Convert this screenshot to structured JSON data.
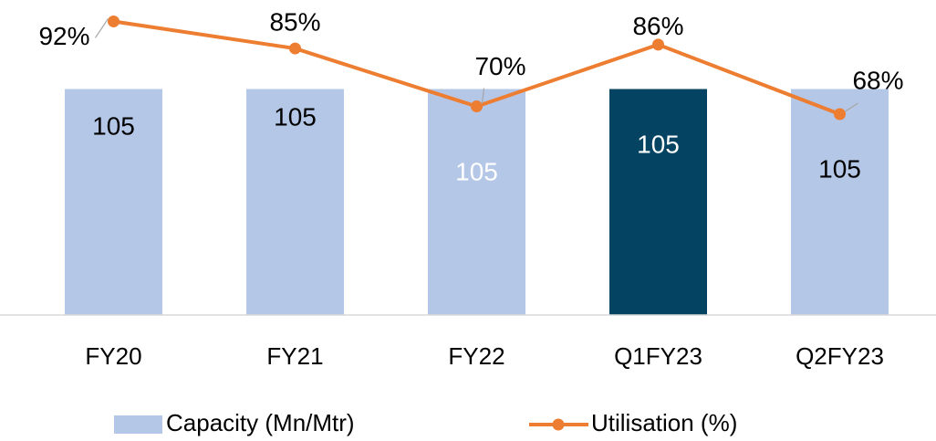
{
  "chart_data": {
    "type": "bar",
    "categories": [
      "FY20",
      "FY21",
      "FY22",
      "Q1FY23",
      "Q2FY23"
    ],
    "series": [
      {
        "name": "Capacity (Mn/Mtr)",
        "type": "bar",
        "color": "#b4c7e7",
        "colors": [
          "#b4c7e7",
          "#b4c7e7",
          "#b4c7e7",
          "#044462",
          "#b4c7e7"
        ],
        "label_colors": [
          "#000000",
          "#000000",
          "#ffffff",
          "#ffffff",
          "#000000"
        ],
        "values": [
          105,
          105,
          105,
          105,
          105
        ]
      },
      {
        "name": "Utilisation (%)",
        "type": "line",
        "axis": "y2",
        "color": "#ed7d31",
        "values": [
          92,
          85,
          70,
          86,
          68
        ],
        "value_labels": [
          "92%",
          "85%",
          "70%",
          "86%",
          "68%"
        ]
      }
    ],
    "ylim": [
      0,
      140
    ],
    "y2lim": [
      16,
      94
    ],
    "legend": "bottom"
  }
}
